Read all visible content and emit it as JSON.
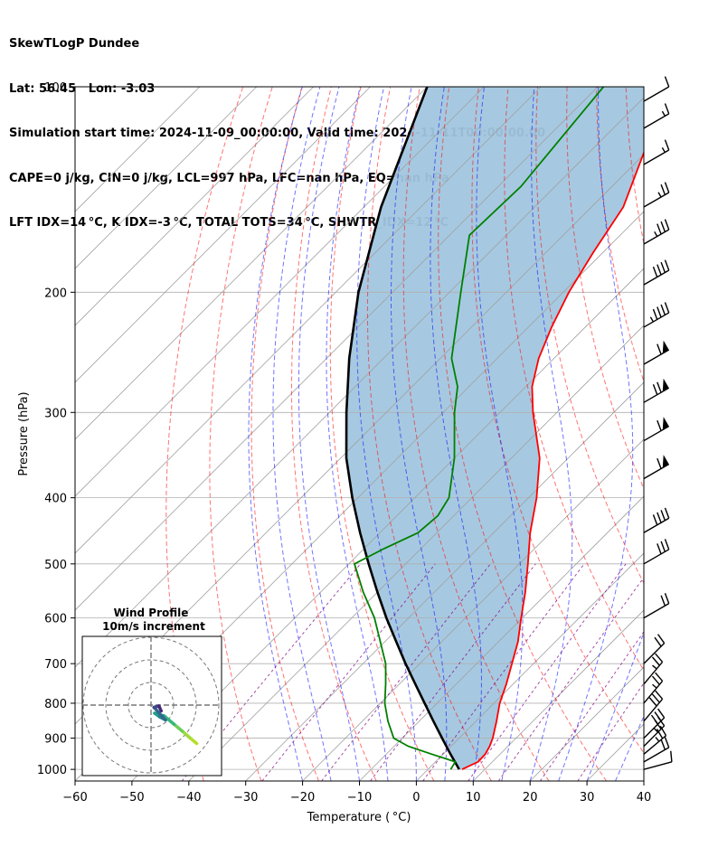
{
  "header": {
    "line1": "SkewTLogP Dundee",
    "line2": "Lat: 56.45   Lon: -3.03",
    "line3": "Simulation start time: 2024-11-09_00:00:00, Valid time: 2024-11-11T00:00:00.00",
    "line4": "CAPE=0 j/kg, CIN=0 j/kg, LCL=997 hPa, LFC=nan hPa, EQ=nan hPa",
    "line5": "LFT IDX=14 °C, K IDX=-3 °C, TOTAL TOTS=34 °C, SHWTR_IDX=12 °C"
  },
  "chart_data": {
    "type": "line",
    "subtype": "skew-t log-p",
    "xlabel": "Temperature ( °C)",
    "ylabel": "Pressure (hPa)",
    "xlim": [
      -60,
      40
    ],
    "ylim": [
      1040,
      100
    ],
    "y_scale": "log",
    "grid": true,
    "x_ticks": [
      "−60",
      "−50",
      "−40",
      "−30",
      "−20",
      "−10",
      "0",
      "10",
      "20",
      "30",
      "40"
    ],
    "y_ticks": [
      "100",
      "200",
      "300",
      "400",
      "500",
      "600",
      "700",
      "800",
      "900",
      "1000"
    ],
    "series": [
      {
        "name": "Temperature",
        "color": "#ff0000",
        "points": [
          [
            1000,
            6.0
          ],
          [
            975,
            7.5
          ],
          [
            950,
            7.4
          ],
          [
            925,
            6.8
          ],
          [
            900,
            5.9
          ],
          [
            850,
            3.6
          ],
          [
            800,
            1.0
          ],
          [
            750,
            -1.2
          ],
          [
            700,
            -3.8
          ],
          [
            650,
            -6.6
          ],
          [
            600,
            -10.2
          ],
          [
            550,
            -14.0
          ],
          [
            500,
            -18.5
          ],
          [
            450,
            -23.6
          ],
          [
            400,
            -28.6
          ],
          [
            350,
            -35.0
          ],
          [
            300,
            -44.2
          ],
          [
            275,
            -48.9
          ],
          [
            250,
            -52.7
          ],
          [
            225,
            -55.9
          ],
          [
            200,
            -59.0
          ],
          [
            175,
            -61.7
          ],
          [
            150,
            -64.4
          ],
          [
            125,
            -70.3
          ],
          [
            100,
            -75.0
          ]
        ]
      },
      {
        "name": "Dewpoint",
        "color": "#008000",
        "points": [
          [
            1000,
            4.0
          ],
          [
            975,
            3.5
          ],
          [
            950,
            -2.0
          ],
          [
            925,
            -7.5
          ],
          [
            900,
            -11.5
          ],
          [
            850,
            -15.5
          ],
          [
            800,
            -19.2
          ],
          [
            750,
            -22.4
          ],
          [
            700,
            -26.0
          ],
          [
            650,
            -30.8
          ],
          [
            600,
            -36.0
          ],
          [
            550,
            -42.5
          ],
          [
            500,
            -49.0
          ],
          [
            475,
            -46.5
          ],
          [
            450,
            -43.3
          ],
          [
            425,
            -42.8
          ],
          [
            400,
            -44.0
          ],
          [
            350,
            -50.0
          ],
          [
            300,
            -58.0
          ],
          [
            275,
            -62.0
          ],
          [
            250,
            -68.0
          ],
          [
            200,
            -78.0
          ],
          [
            165,
            -86.5
          ],
          [
            140,
            -86.0
          ],
          [
            100,
            -89.0
          ]
        ]
      },
      {
        "name": "Parcel",
        "color": "#000000",
        "points": [
          [
            1000,
            5.5
          ],
          [
            950,
            1.3
          ],
          [
            900,
            -3.0
          ],
          [
            850,
            -7.5
          ],
          [
            800,
            -12.2
          ],
          [
            750,
            -17.2
          ],
          [
            700,
            -22.5
          ],
          [
            650,
            -28.0
          ],
          [
            600,
            -33.9
          ],
          [
            550,
            -40.0
          ],
          [
            500,
            -46.5
          ],
          [
            450,
            -53.5
          ],
          [
            400,
            -61.0
          ],
          [
            350,
            -69.0
          ],
          [
            300,
            -77.0
          ],
          [
            250,
            -86.0
          ],
          [
            200,
            -96.0
          ],
          [
            150,
            -107.0
          ],
          [
            100,
            -120.0
          ]
        ]
      }
    ],
    "shaded_area": {
      "name": "CIN/CAPE region",
      "color": "#a1c6df",
      "between": [
        "Temperature",
        "Parcel"
      ]
    },
    "reference_lines": {
      "dry_adiabats": {
        "color": "#ff0000",
        "style": "dashed"
      },
      "moist_adiabats": {
        "color": "#0000ff",
        "style": "dashed"
      },
      "mixing_ratio": {
        "color": "#800080",
        "style": "dashed"
      },
      "isotherms": {
        "color": "#808080",
        "style": "solid"
      }
    },
    "wind_barbs": {
      "position": "right",
      "barbs": [
        {
          "p": 1000,
          "speed_kt": 10,
          "dir": 285
        },
        {
          "p": 975,
          "speed_kt": 20,
          "dir": 300
        },
        {
          "p": 950,
          "speed_kt": 25,
          "dir": 310
        },
        {
          "p": 925,
          "speed_kt": 25,
          "dir": 315
        },
        {
          "p": 900,
          "speed_kt": 30,
          "dir": 315
        },
        {
          "p": 850,
          "speed_kt": 30,
          "dir": 320
        },
        {
          "p": 800,
          "speed_kt": 25,
          "dir": 320
        },
        {
          "p": 750,
          "speed_kt": 25,
          "dir": 320
        },
        {
          "p": 700,
          "speed_kt": 20,
          "dir": 315
        },
        {
          "p": 600,
          "speed_kt": 20,
          "dir": 300
        },
        {
          "p": 500,
          "speed_kt": 30,
          "dir": 300
        },
        {
          "p": 450,
          "speed_kt": 40,
          "dir": 300
        },
        {
          "p": 375,
          "speed_kt": 60,
          "dir": 300
        },
        {
          "p": 330,
          "speed_kt": 60,
          "dir": 300
        },
        {
          "p": 290,
          "speed_kt": 70,
          "dir": 300
        },
        {
          "p": 255,
          "speed_kt": 60,
          "dir": 300
        },
        {
          "p": 225,
          "speed_kt": 45,
          "dir": 300
        },
        {
          "p": 195,
          "speed_kt": 40,
          "dir": 300
        },
        {
          "p": 170,
          "speed_kt": 35,
          "dir": 300
        },
        {
          "p": 150,
          "speed_kt": 25,
          "dir": 300
        },
        {
          "p": 130,
          "speed_kt": 15,
          "dir": 300
        },
        {
          "p": 115,
          "speed_kt": 15,
          "dir": 300
        },
        {
          "p": 105,
          "speed_kt": 10,
          "dir": 300
        }
      ]
    },
    "inset": {
      "title_line1": "Wind Profile",
      "title_line2": "10m/s increment",
      "type": "hodograph",
      "rings_ms": [
        10,
        20,
        30
      ],
      "colormap": "viridis",
      "points": [
        [
          20.2,
          -17.0
        ],
        [
          17.1,
          -14.4
        ],
        [
          13.8,
          -11.5
        ],
        [
          10.2,
          -8.5
        ],
        [
          5.8,
          -4.8
        ],
        [
          1.6,
          -3.6
        ],
        [
          3.8,
          -5.2
        ],
        [
          6.4,
          -6.6
        ],
        [
          1.3,
          -1.0
        ],
        [
          3.5,
          -0.4
        ],
        [
          4.5,
          -2.6
        ]
      ]
    }
  }
}
